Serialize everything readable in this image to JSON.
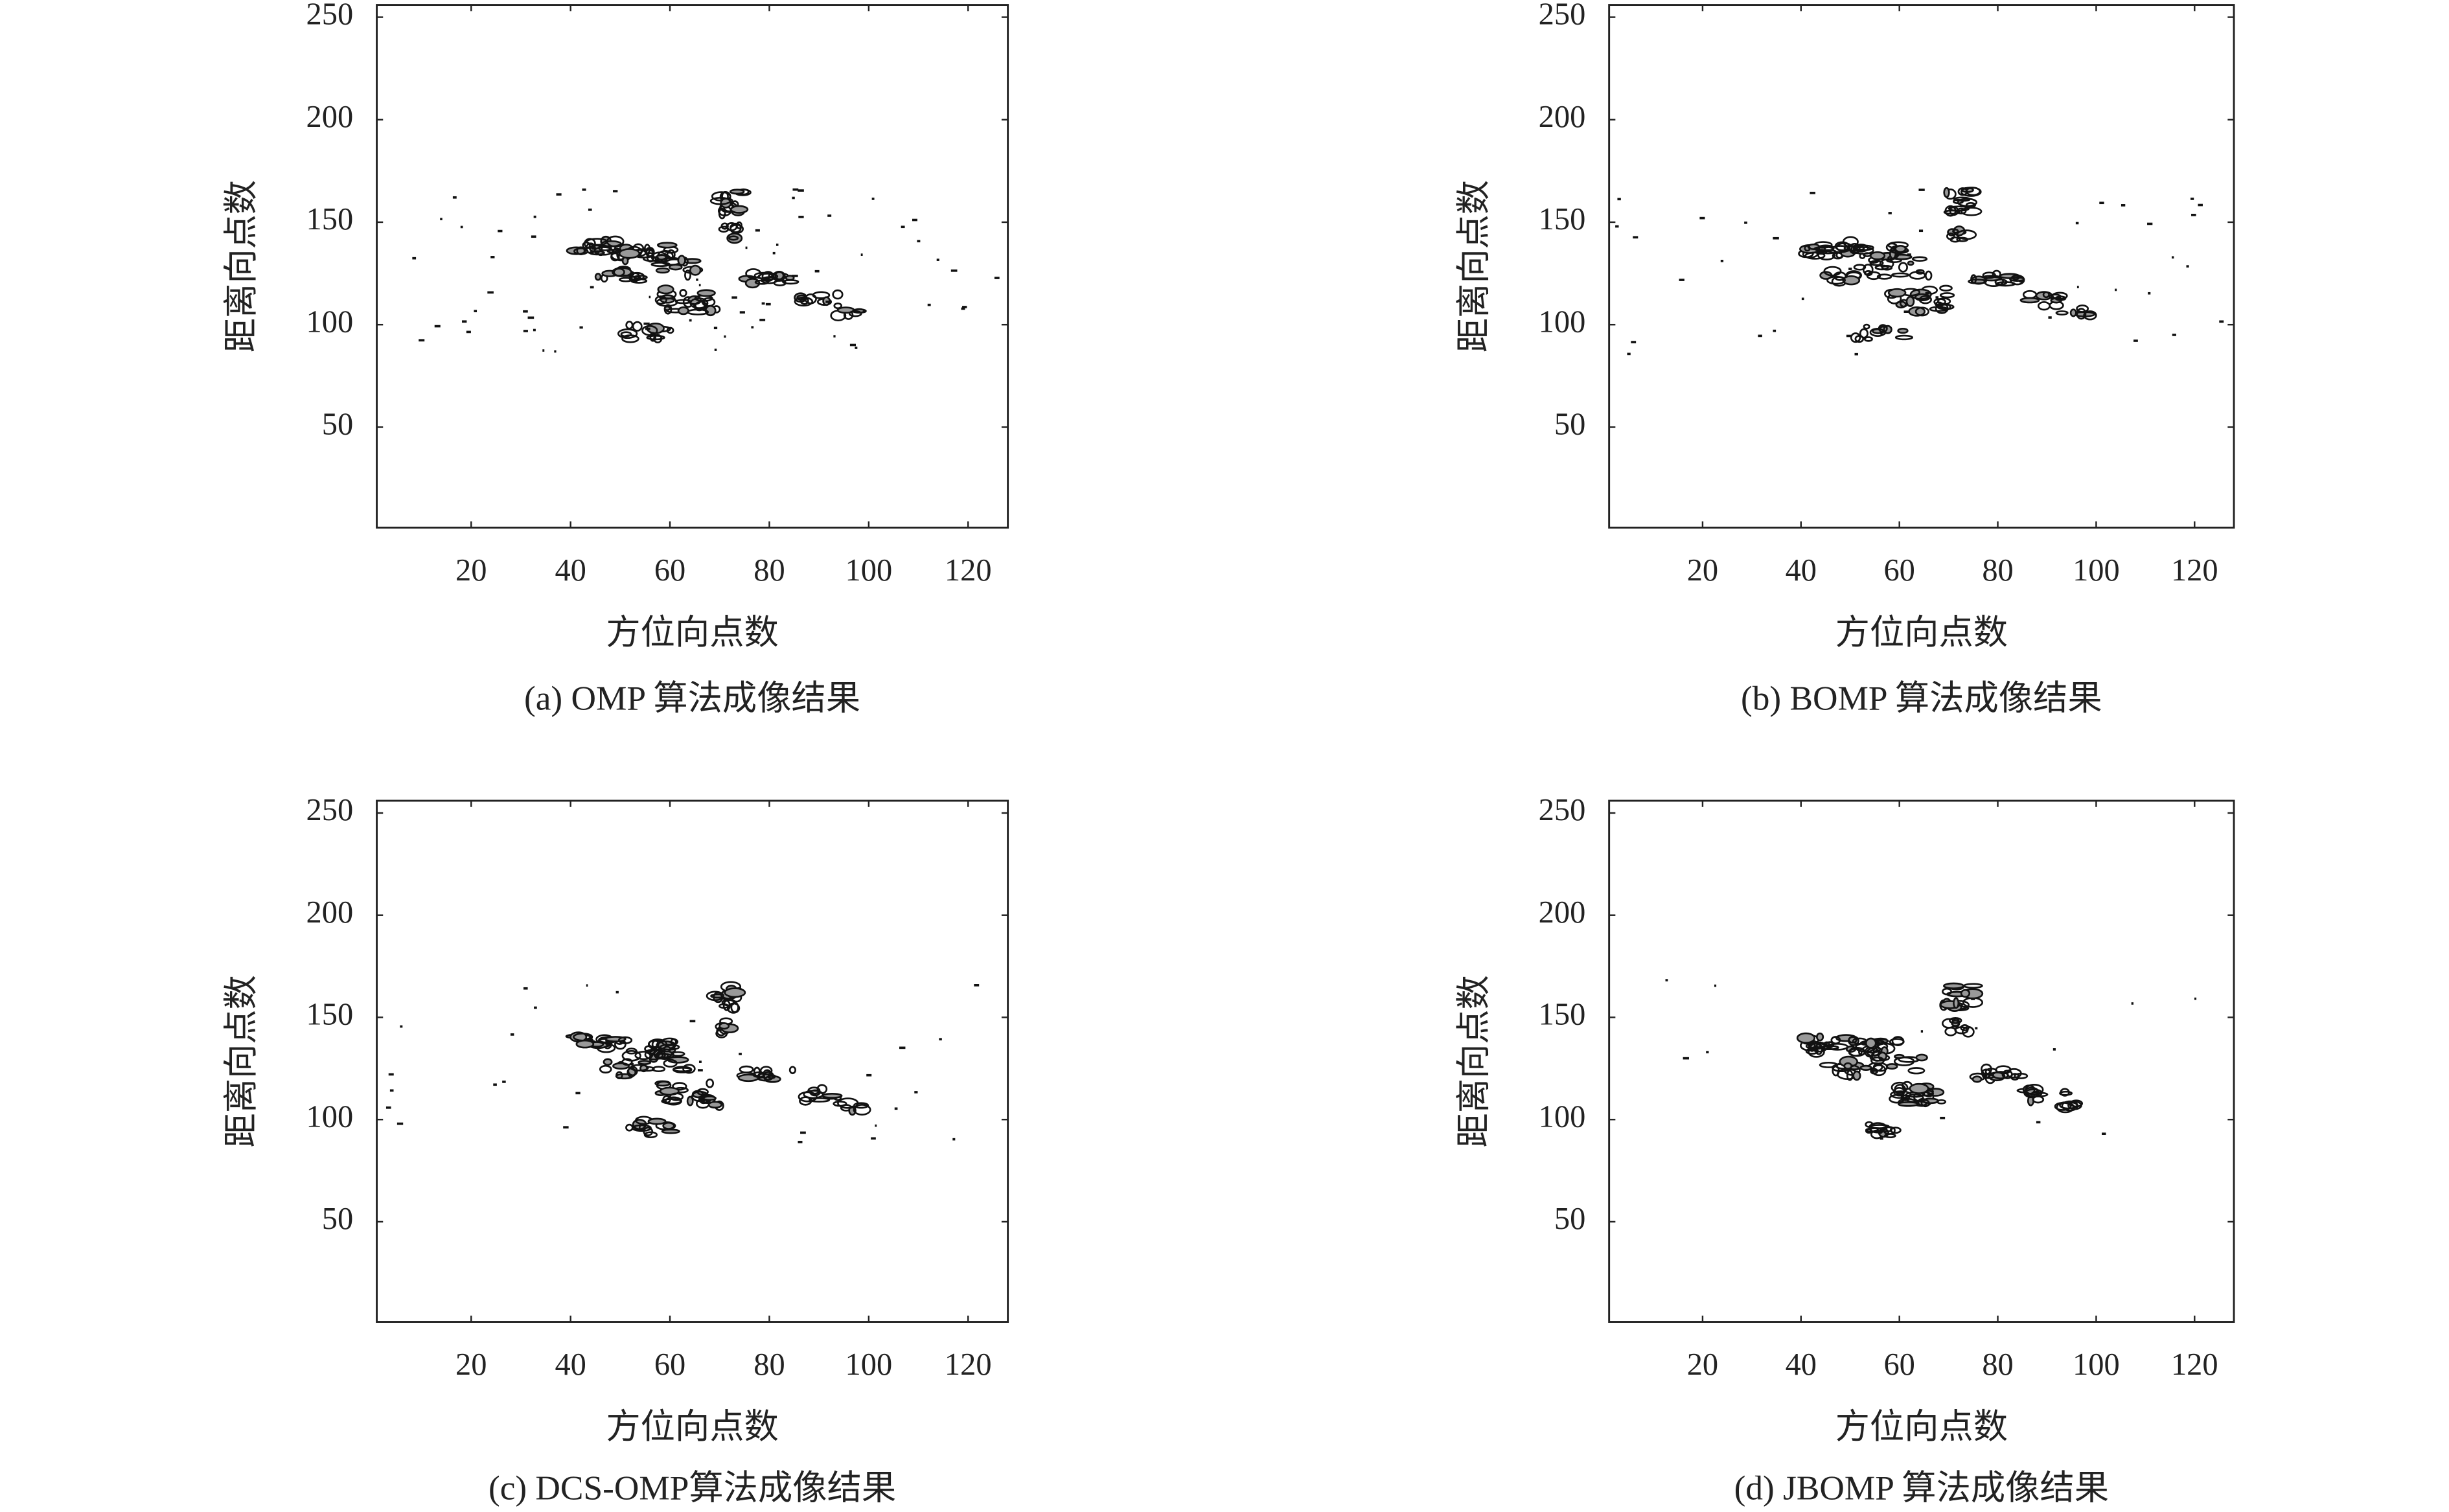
{
  "chart_data": [
    {
      "type": "contour",
      "title": "(a) OMP 算法成像结果",
      "xlabel": "方位向点数",
      "ylabel": "距离向点数",
      "xlim": [
        1,
        128
      ],
      "ylim": [
        1,
        256
      ],
      "xticks": [
        20,
        40,
        60,
        80,
        100,
        120
      ],
      "yticks": [
        50,
        100,
        150,
        200,
        250
      ]
    },
    {
      "type": "contour",
      "title": "(b) BOMP 算法成像结果",
      "xlabel": "方位向点数",
      "ylabel": "距离向点数",
      "xlim": [
        1,
        128
      ],
      "ylim": [
        1,
        256
      ],
      "xticks": [
        20,
        40,
        60,
        80,
        100,
        120
      ],
      "yticks": [
        50,
        100,
        150,
        200,
        250
      ]
    },
    {
      "type": "contour",
      "title": "(c) DCS-OMP算法成像结果",
      "xlabel": "方位向点数",
      "ylabel": "距离向点数",
      "xlim": [
        1,
        128
      ],
      "ylim": [
        1,
        256
      ],
      "xticks": [
        20,
        40,
        60,
        80,
        100,
        120
      ],
      "yticks": [
        50,
        100,
        150,
        200,
        250
      ]
    },
    {
      "type": "contour",
      "title": "(d) JBOMP 算法成像结果",
      "xlabel": "方位向点数",
      "ylabel": "距离向点数",
      "xlim": [
        1,
        128
      ],
      "ylim": [
        1,
        256
      ],
      "xticks": [
        20,
        40,
        60,
        80,
        100,
        120
      ],
      "yticks": [
        50,
        100,
        150,
        200,
        250
      ]
    }
  ]
}
